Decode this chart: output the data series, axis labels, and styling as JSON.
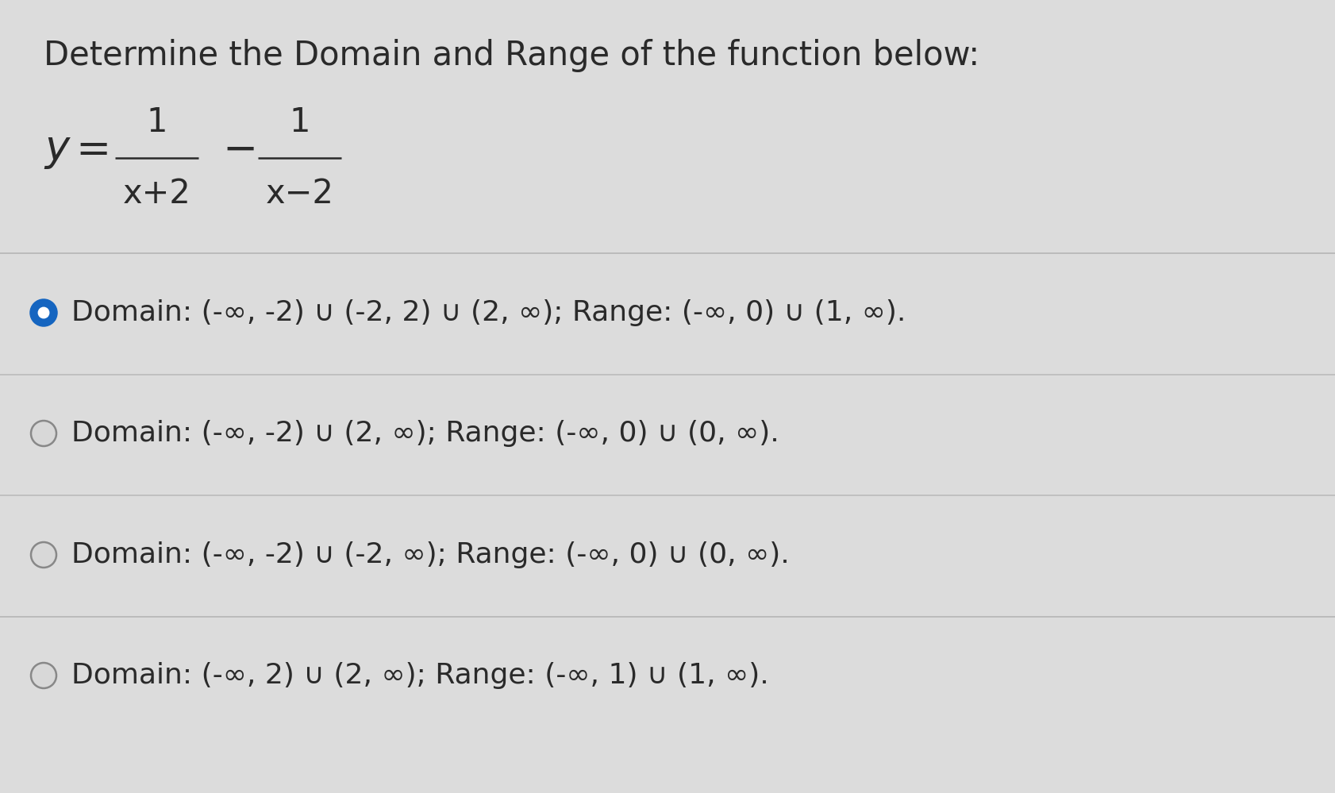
{
  "title": "Determine the Domain and Range of the function below:",
  "title_fontsize": 30,
  "background_color": "#dcdcdc",
  "text_color": "#2a2a2a",
  "options": [
    {
      "text": "Domain: (-∞, -2) ∪ (-2, 2) ∪ (2, ∞); Range: (-∞, 0) ∪ (1, ∞).",
      "selected": true
    },
    {
      "text": "Domain: (-∞, -2) ∪ (2, ∞); Range: (-∞, 0) ∪ (0, ∞).",
      "selected": false
    },
    {
      "text": "Domain: (-∞, -2) ∪ (-2, ∞); Range: (-∞, 0) ∪ (0, ∞).",
      "selected": false
    },
    {
      "text": "Domain: (-∞, 2) ∪ (2, ∞); Range: (-∞, 1) ∪ (1, ∞).",
      "selected": false
    }
  ],
  "option_fontsize": 26,
  "selected_color": "#1565c0",
  "unselected_color": "#888888",
  "divider_color": "#bbbbbb"
}
